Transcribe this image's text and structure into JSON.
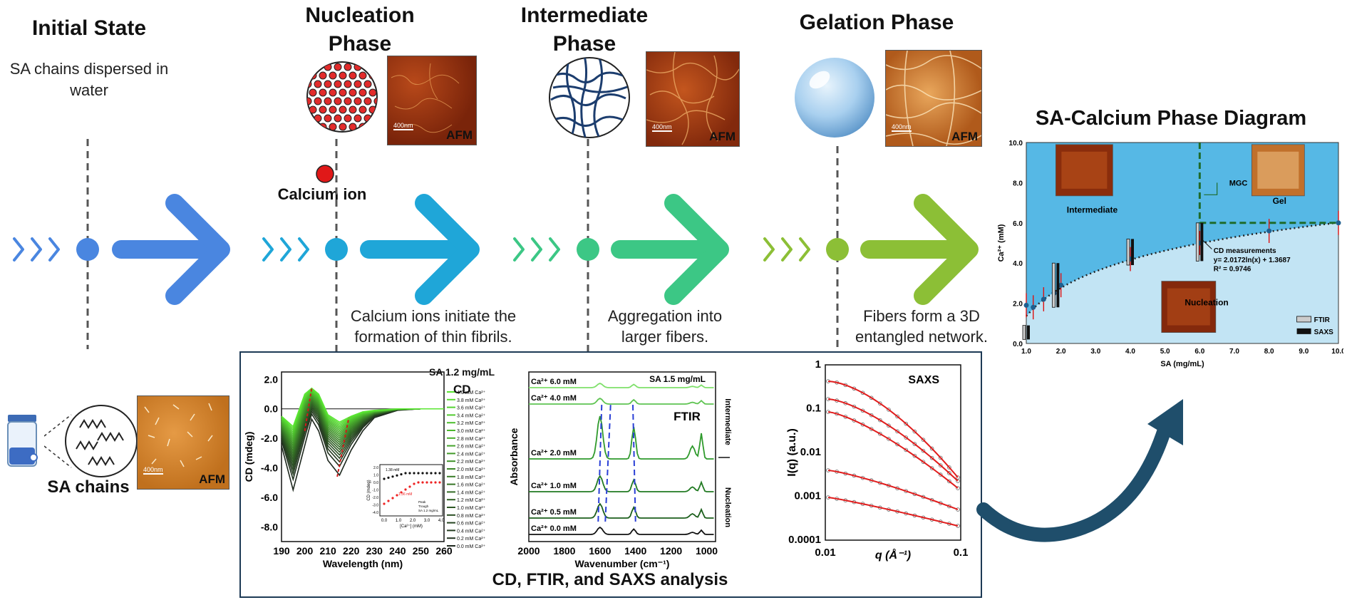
{
  "stages": [
    {
      "title": "Initial State",
      "subtitle": "SA chains dispersed in water"
    },
    {
      "title": "Nucleation Phase",
      "afm": "AFM",
      "ion_label": "Calcium ion",
      "description": "Calcium ions initiate the formation of thin fibrils."
    },
    {
      "title": "Intermediate Phase",
      "afm": "AFM",
      "description": "Aggregation into larger fibers."
    },
    {
      "title": "Gelation Phase",
      "afm": "AFM",
      "description": "Fibers form a 3D entangled network."
    }
  ],
  "initial": {
    "chains_label": "SA chains",
    "afm": "AFM",
    "scale_bar": "400nm"
  },
  "colors": {
    "blue": "#4a86e0",
    "cyan": "#1fa6d8",
    "green": "#3cc785",
    "lime": "#8cbf36",
    "afm_red": "#a33b12",
    "phase_cyan": "#56b8e5",
    "phase_light": "#c2e4f4"
  },
  "analysis_panel": {
    "title": "CD, FTIR, and SAXS analysis"
  },
  "cd_plot": {
    "title": "CD",
    "inset_note": "SA 1.2 mg/mL",
    "xlabel": "Wavelength (nm)",
    "ylabel": "CD (mdeg)",
    "xticks": [
      "190",
      "200",
      "210",
      "220",
      "230",
      "240",
      "250",
      "260"
    ],
    "yticks": [
      "2.0",
      "0.0",
      "-2.0",
      "-4.0",
      "-6.0",
      "-8.0"
    ],
    "legend": [
      "4.0 mM Ca²⁺",
      "3.8 mM Ca²⁺",
      "3.6 mM Ca²⁺",
      "3.4 mM Ca²⁺",
      "3.2 mM Ca²⁺",
      "3.0 mM Ca²⁺",
      "2.8 mM Ca²⁺",
      "2.6 mM Ca²⁺",
      "2.4 mM Ca²⁺",
      "2.2 mM Ca²⁺",
      "2.0 mM Ca²⁺",
      "1.8 mM Ca²⁺",
      "1.6 mM Ca²⁺",
      "1.4 mM Ca²⁺",
      "1.2 mM Ca²⁺",
      "1.0 mM Ca²⁺",
      "0.8 mM Ca²⁺",
      "0.6 mM Ca²⁺",
      "0.4 mM Ca²⁺",
      "0.2 mM Ca²⁺",
      "0.0 mM Ca²⁺"
    ],
    "inset": {
      "ylabel": "CD (mdeg)",
      "xlabel": "[Ca²⁺] (mM)",
      "annot_top": "1.38 mM",
      "annot_bottom": "1.36 mM",
      "legend": [
        "Peak",
        "Trough",
        "SA 1.2 mg/mL"
      ],
      "xticks": [
        "0.0",
        "1.0",
        "2.0",
        "3.0",
        "4.0"
      ],
      "yticks": [
        "2.0",
        "1.0",
        "0.0",
        "-1.0",
        "-2.0",
        "-3.0",
        "-4.0"
      ]
    }
  },
  "ftir_plot": {
    "title": "FTIR",
    "note": "SA 1.5 mg/mL",
    "xlabel": "Wavenumber (cm⁻¹)",
    "ylabel": "Absorbance",
    "xticks": [
      "2000",
      "1800",
      "1600",
      "1400",
      "1200",
      "1000"
    ],
    "curves": [
      "Ca²⁺ 6.0 mM",
      "Ca²⁺ 4.0 mM",
      "Ca²⁺ 2.0 mM",
      "Ca²⁺ 1.0 mM",
      "Ca²⁺ 0.5 mM",
      "Ca²⁺ 0.0 mM"
    ],
    "side_labels": [
      "Intermediate",
      "Nucleation"
    ]
  },
  "saxs_plot": {
    "title": "SAXS",
    "xlabel": "q  (Å⁻¹)",
    "ylabel": "I(q)  (a.u.)",
    "xticks": [
      "0.01",
      "0.1"
    ],
    "yticks": [
      "1",
      "0.1",
      "0.01",
      "0.001",
      "0.0001"
    ]
  },
  "phase_diagram": {
    "title": "SA-Calcium Phase Diagram",
    "xlabel": "SA (mg/mL)",
    "ylabel": "Ca²⁺ (mM)",
    "xticks": [
      "1.0",
      "2.0",
      "3.0",
      "4.0",
      "5.0",
      "6.0",
      "7.0",
      "8.0",
      "9.0",
      "10.0"
    ],
    "yticks": [
      "10.0",
      "8.0",
      "6.0",
      "4.0",
      "2.0",
      "0.0"
    ],
    "regions": [
      "Intermediate",
      "Gel",
      "Nucleation"
    ],
    "mgc": "MGC",
    "fit_label": "CD measurements",
    "fit_eq": "y= 2.0172ln(x) + 1.3687",
    "fit_r2": "R² = 0.9746",
    "legend": [
      "FTIR",
      "SAXS"
    ]
  },
  "chart_data": [
    {
      "type": "line",
      "title": "CD",
      "xlabel": "Wavelength (nm)",
      "ylabel": "CD (mdeg)",
      "xlim": [
        190,
        260
      ],
      "ylim": [
        -9,
        2.5
      ],
      "x": [
        190,
        195,
        200,
        203,
        206,
        210,
        215,
        220,
        225,
        230,
        240,
        250,
        260
      ],
      "series": [
        {
          "name": "0.0 mM Ca²⁺",
          "values": [
            -2.5,
            -5.5,
            -2.5,
            -0.7,
            -1.5,
            -3.5,
            -4.5,
            -2.8,
            -1.5,
            -0.6,
            -0.1,
            0.0,
            0.0
          ]
        },
        {
          "name": "1.0 mM Ca²⁺",
          "values": [
            -2.0,
            -4.0,
            -1.0,
            0.3,
            -0.3,
            -2.0,
            -3.2,
            -2.0,
            -1.0,
            -0.4,
            -0.1,
            0.0,
            0.0
          ]
        },
        {
          "name": "2.0 mM Ca²⁺",
          "values": [
            -1.0,
            -2.0,
            0.8,
            1.3,
            0.8,
            -0.8,
            -1.6,
            -1.0,
            -0.5,
            -0.2,
            0.0,
            0.0,
            0.0
          ]
        },
        {
          "name": "4.0 mM Ca²⁺",
          "values": [
            -0.5,
            -1.2,
            1.0,
            1.4,
            1.0,
            -0.4,
            -0.9,
            -0.5,
            -0.2,
            -0.1,
            0.0,
            0.0,
            0.0
          ]
        }
      ]
    },
    {
      "type": "scatter",
      "title": "SA-Calcium Phase Diagram",
      "xlabel": "SA (mg/mL)",
      "ylabel": "Ca²⁺ (mM)",
      "xlim": [
        1,
        10
      ],
      "ylim": [
        0,
        10
      ],
      "series": [
        {
          "name": "CD measurements",
          "x": [
            1.0,
            1.2,
            1.5,
            1.8,
            2.0,
            4.0,
            6.0,
            8.0,
            10.0
          ],
          "values": [
            1.9,
            1.8,
            2.2,
            2.5,
            2.9,
            4.2,
            5.0,
            5.6,
            6.0
          ]
        }
      ]
    }
  ]
}
